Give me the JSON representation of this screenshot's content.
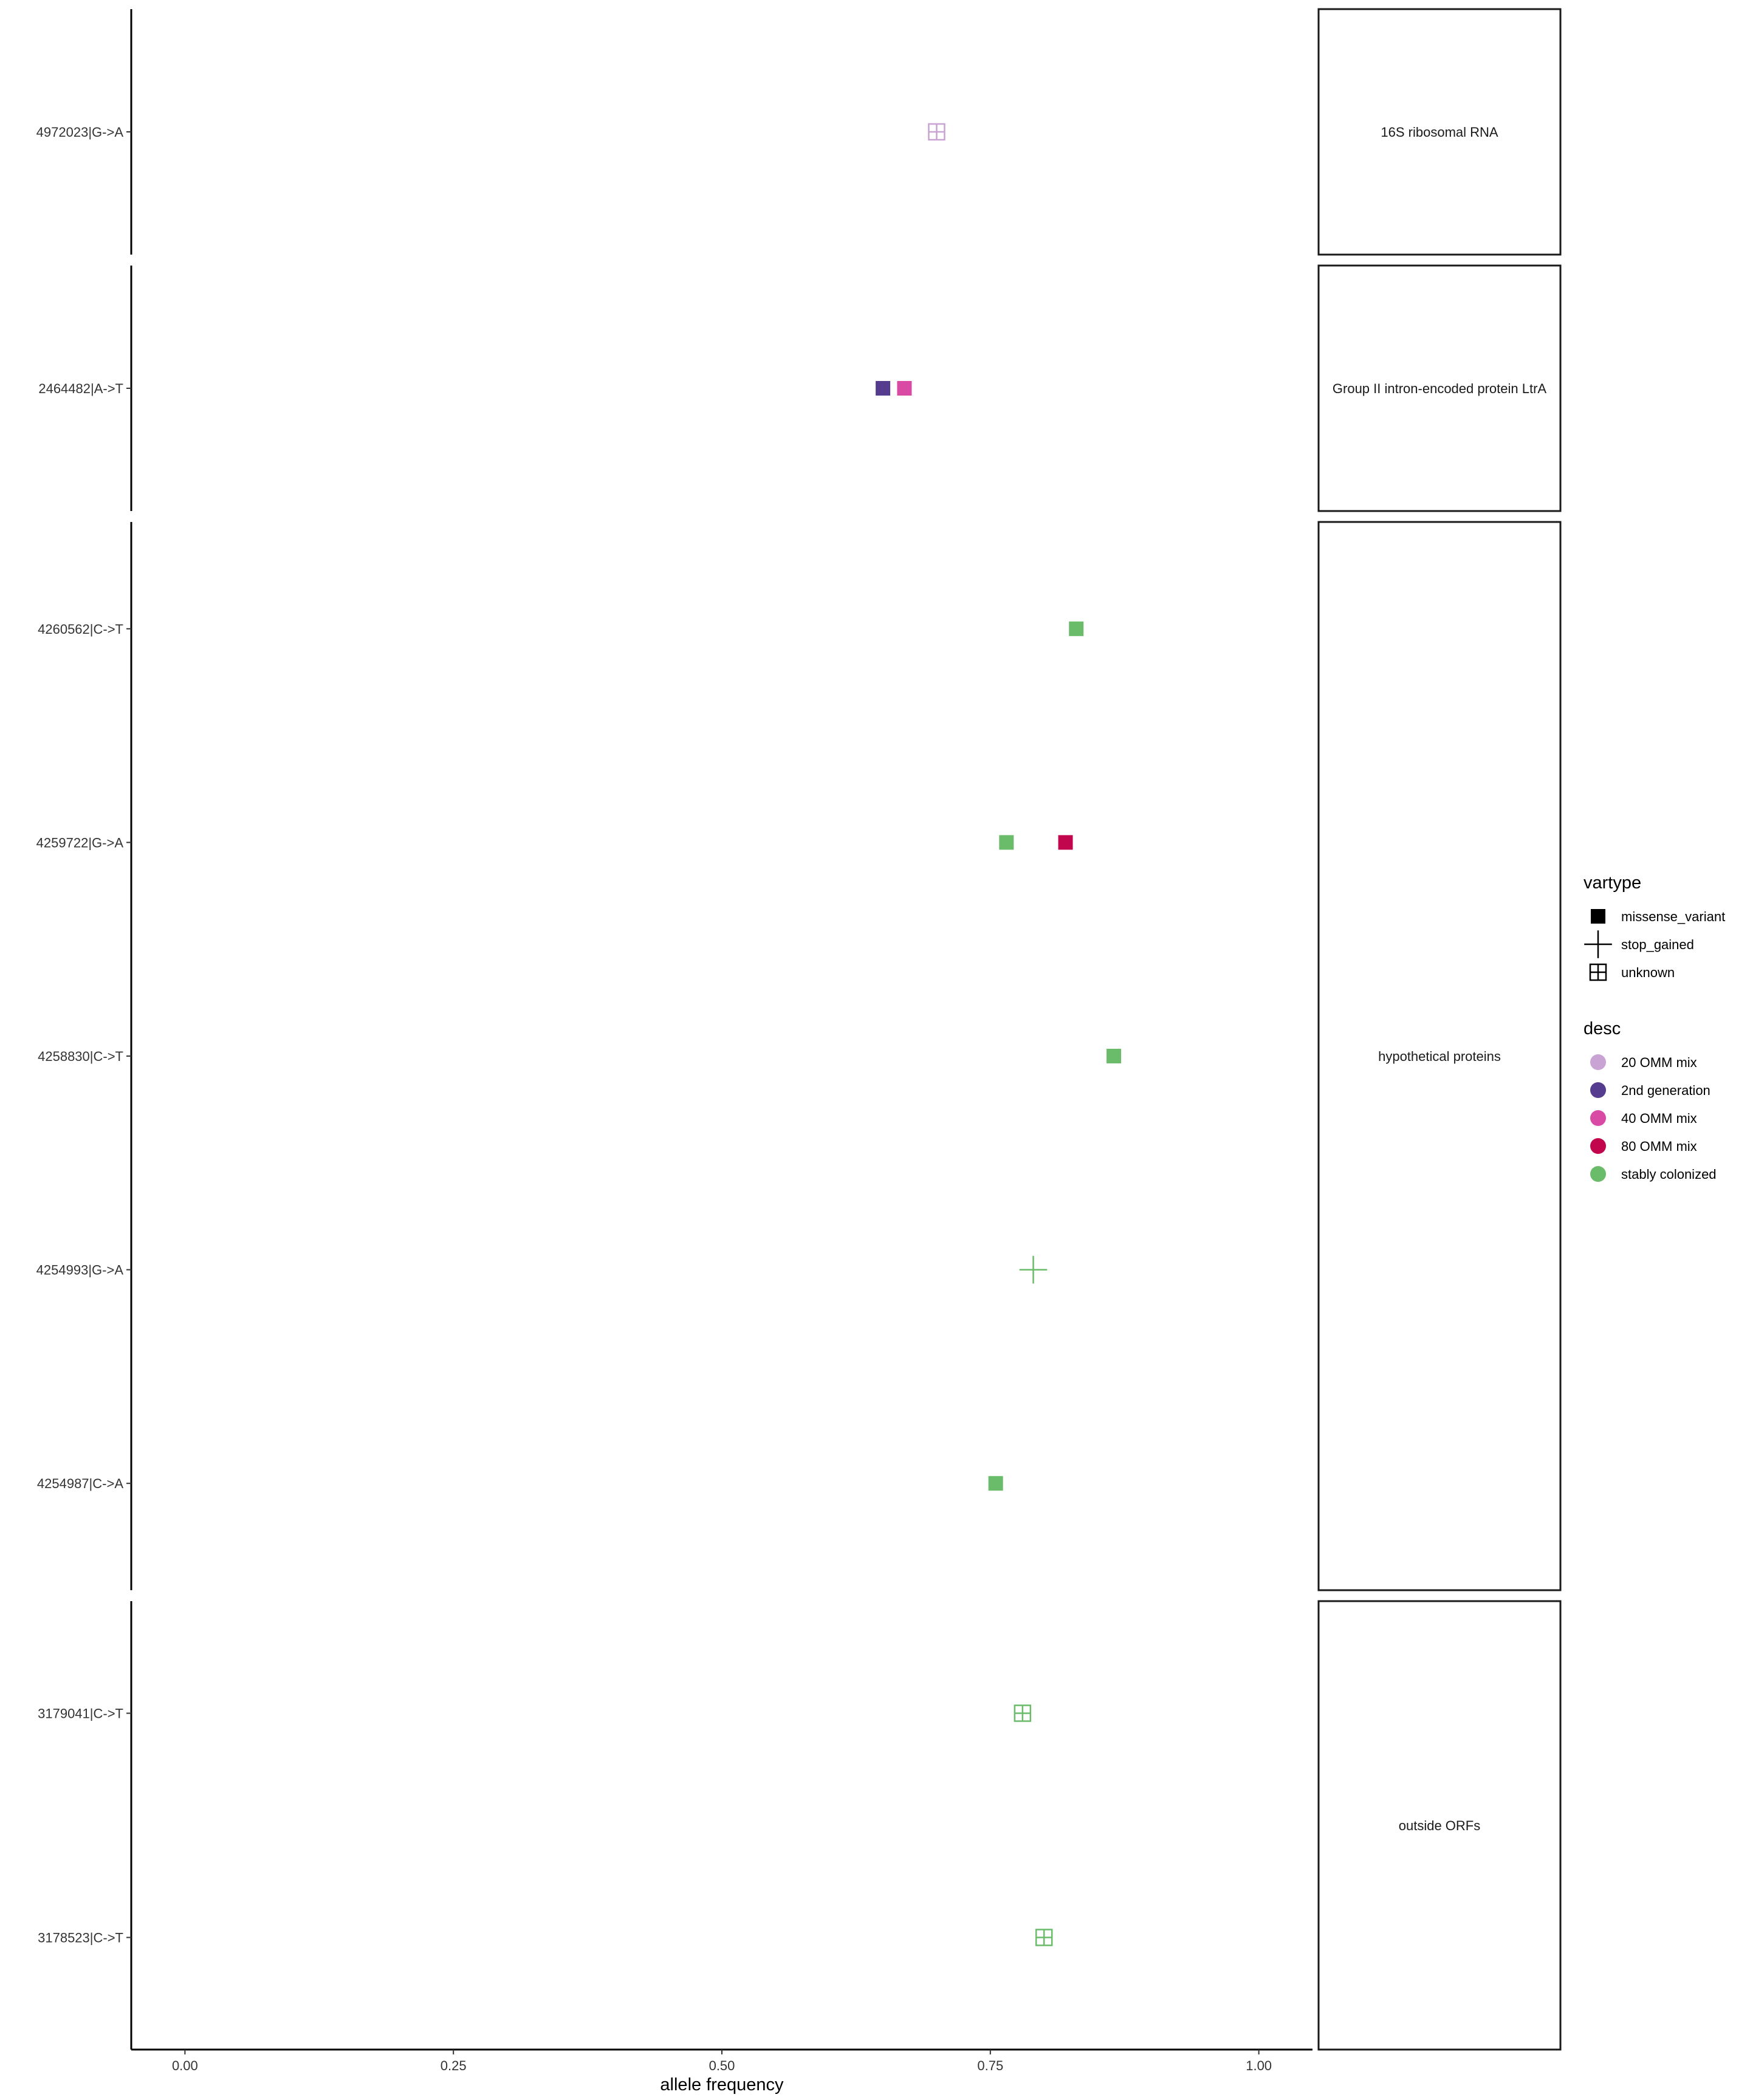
{
  "chart_data": {
    "type": "scatter",
    "title": "",
    "xlabel": "allele frequency",
    "ylabel": "",
    "xlim": [
      -0.05,
      1.05
    ],
    "x_ticks": [
      0,
      0.25,
      0.5,
      0.75,
      1.0
    ],
    "x_tick_labels": [
      "0.00",
      "0.25",
      "0.50",
      "0.75",
      "1.00"
    ],
    "grid": false,
    "facets": [
      {
        "label": "16S ribosomal RNA",
        "variants": [
          "4972023|G->A"
        ]
      },
      {
        "label": "Group II intron-encoded protein LtrA",
        "variants": [
          "2464482|A->T"
        ]
      },
      {
        "label": "hypothetical proteins",
        "variants": [
          "4260562|C->T",
          "4259722|G->A",
          "4258830|C->T",
          "4254993|G->A",
          "4254987|C->A"
        ]
      },
      {
        "label": "outside ORFs",
        "variants": [
          "3179041|C->T",
          "3178523|C->T"
        ]
      }
    ],
    "points": [
      {
        "variant": "4972023|G->A",
        "x": 0.7,
        "vartype": "unknown",
        "desc": "20 OMM mix"
      },
      {
        "variant": "2464482|A->T",
        "x": 0.65,
        "vartype": "missense_variant",
        "desc": "2nd generation"
      },
      {
        "variant": "2464482|A->T",
        "x": 0.67,
        "vartype": "missense_variant",
        "desc": "40 OMM mix"
      },
      {
        "variant": "4260562|C->T",
        "x": 0.83,
        "vartype": "missense_variant",
        "desc": "stably colonized"
      },
      {
        "variant": "4259722|G->A",
        "x": 0.765,
        "vartype": "missense_variant",
        "desc": "stably colonized"
      },
      {
        "variant": "4259722|G->A",
        "x": 0.82,
        "vartype": "missense_variant",
        "desc": "80 OMM mix"
      },
      {
        "variant": "4258830|C->T",
        "x": 0.865,
        "vartype": "missense_variant",
        "desc": "stably colonized"
      },
      {
        "variant": "4254993|G->A",
        "x": 0.79,
        "vartype": "stop_gained",
        "desc": "stably colonized"
      },
      {
        "variant": "4254987|C->A",
        "x": 0.755,
        "vartype": "missense_variant",
        "desc": "stably colonized"
      },
      {
        "variant": "3179041|C->T",
        "x": 0.78,
        "vartype": "unknown",
        "desc": "stably colonized"
      },
      {
        "variant": "3178523|C->T",
        "x": 0.8,
        "vartype": "unknown",
        "desc": "stably colonized"
      }
    ],
    "legend": {
      "placement": "right",
      "vartype": {
        "title": "vartype",
        "items": [
          {
            "label": "missense_variant",
            "shape": "filled-square"
          },
          {
            "label": "stop_gained",
            "shape": "plus"
          },
          {
            "label": "unknown",
            "shape": "square-plus"
          }
        ]
      },
      "desc": {
        "title": "desc",
        "items": [
          {
            "label": "20 OMM mix",
            "color": "#c9a3d4"
          },
          {
            "label": "2nd generation",
            "color": "#553c8e"
          },
          {
            "label": "40 OMM mix",
            "color": "#d84aa4"
          },
          {
            "label": "80 OMM mix",
            "color": "#c2064d"
          },
          {
            "label": "stably colonized",
            "color": "#6abb6a"
          }
        ]
      }
    }
  }
}
